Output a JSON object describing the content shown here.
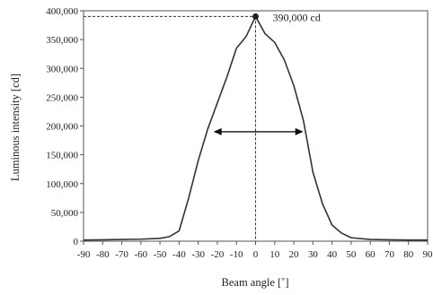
{
  "chart_data": {
    "type": "line",
    "title": "",
    "xlabel": "Beam angle [˚]",
    "ylabel": "Luminous intensity [cd]",
    "xlim": [
      -90,
      90
    ],
    "ylim": [
      0,
      400000
    ],
    "x_ticks": [
      "-90",
      "-80",
      "-70",
      "-60",
      "-50",
      "-40",
      "-30",
      "-20",
      "-10",
      "0",
      "10",
      "20",
      "30",
      "40",
      "50",
      "60",
      "70",
      "80",
      "90"
    ],
    "y_ticks": [
      "0",
      "50,000",
      "100,000",
      "150,000",
      "200,000",
      "250,000",
      "300,000",
      "350,000",
      "400,000"
    ],
    "x_tick_values": [
      -90,
      -80,
      -70,
      -60,
      -50,
      -40,
      -30,
      -20,
      -10,
      0,
      10,
      20,
      30,
      40,
      50,
      60,
      70,
      80,
      90
    ],
    "y_tick_values": [
      0,
      50000,
      100000,
      150000,
      200000,
      250000,
      300000,
      350000,
      400000
    ],
    "grid": false,
    "legend": "none",
    "series": [
      {
        "x": [
          -90,
          -80,
          -70,
          -60,
          -50,
          -45,
          -40,
          -35,
          -30,
          -25,
          -20,
          -15,
          -10,
          -5,
          0,
          5,
          10,
          15,
          20,
          25,
          30,
          35,
          40,
          45,
          50,
          60,
          70,
          80,
          90
        ],
        "y": [
          2000,
          2500,
          3000,
          3500,
          5000,
          8000,
          18000,
          75000,
          140000,
          195000,
          240000,
          285000,
          335000,
          355000,
          390000,
          360000,
          345000,
          315000,
          270000,
          210000,
          120000,
          65000,
          28000,
          14000,
          6000,
          3000,
          2500,
          2000,
          2000
        ],
        "color": "#333333"
      }
    ],
    "peak": {
      "x": 0,
      "y": 390000,
      "label": "390,000 cd"
    },
    "beam_width_arrow": {
      "x_start": -22,
      "x_end": 25,
      "y": 190000
    }
  }
}
